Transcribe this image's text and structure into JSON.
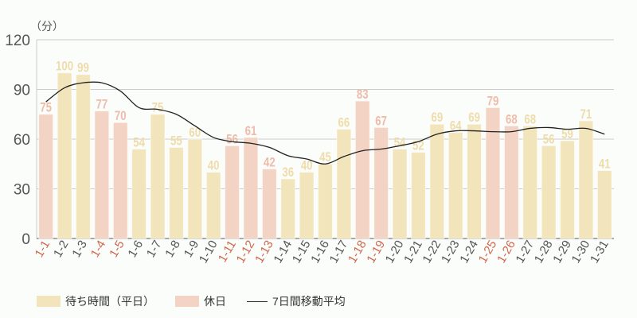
{
  "chart_data": {
    "type": "bar",
    "unit_label": "（分）",
    "ylim": [
      0,
      120
    ],
    "yticks": [
      0,
      30,
      60,
      90,
      120
    ],
    "grid": true,
    "legend_position": "bottom-left",
    "categories": [
      "1-1",
      "1-2",
      "1-3",
      "1-4",
      "1-5",
      "1-6",
      "1-7",
      "1-8",
      "1-9",
      "1-10",
      "1-11",
      "1-12",
      "1-13",
      "1-14",
      "1-15",
      "1-16",
      "1-17",
      "1-18",
      "1-19",
      "1-20",
      "1-21",
      "1-22",
      "1-23",
      "1-24",
      "1-25",
      "1-26",
      "1-27",
      "1-28",
      "1-29",
      "1-30",
      "1-31"
    ],
    "values": [
      75,
      100,
      99,
      77,
      70,
      54,
      75,
      55,
      60,
      40,
      56,
      61,
      42,
      36,
      40,
      45,
      66,
      83,
      67,
      54,
      52,
      69,
      64,
      69,
      79,
      68,
      68,
      56,
      59,
      71,
      41
    ],
    "holidays": [
      "1-1",
      "1-4",
      "1-5",
      "1-11",
      "1-12",
      "1-13",
      "1-18",
      "1-19",
      "1-25",
      "1-26"
    ],
    "moving_average": [
      82.5,
      91,
      94,
      94,
      89,
      79,
      78,
      75,
      68,
      61,
      58.5,
      57.5,
      55,
      50,
      48,
      45,
      49.5,
      53,
      54,
      56,
      58.5,
      63,
      65,
      65,
      64.5,
      64.5,
      66.5,
      67,
      66,
      66.5,
      63
    ],
    "series": [
      {
        "name": "待ち時間（平日）",
        "color": "#f2e4bb"
      },
      {
        "name": "休日",
        "color": "#f3d3c4"
      },
      {
        "name": "7日間移動平均",
        "color": "#222222"
      }
    ],
    "colors": {
      "weekday_label": "#efdcab",
      "holiday_label": "#efbcaa",
      "holiday_tick": "#d0694e",
      "tick": "#555555",
      "grid": "#cccccc"
    }
  }
}
